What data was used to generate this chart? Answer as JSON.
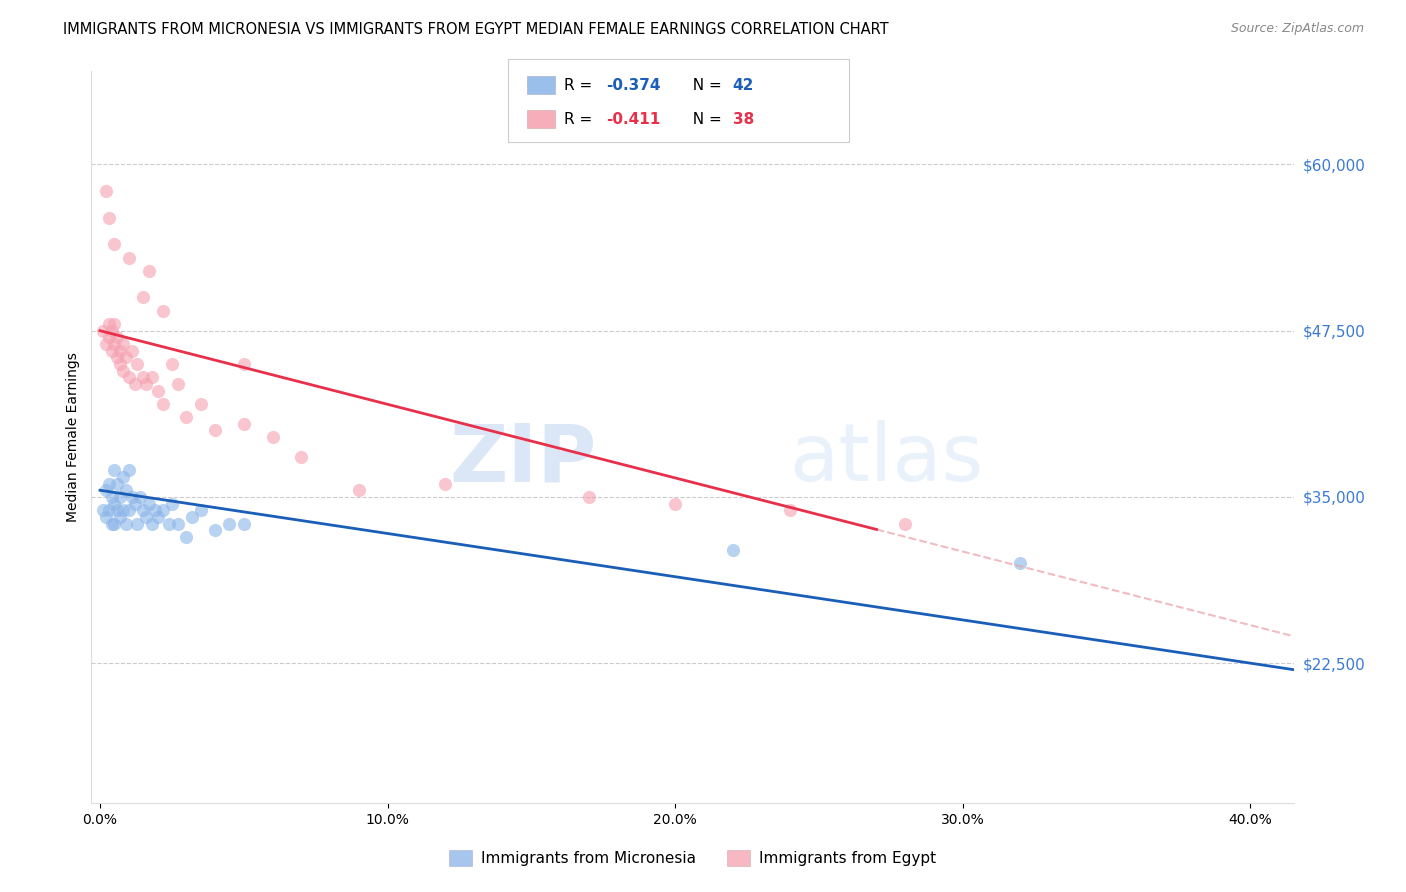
{
  "title": "IMMIGRANTS FROM MICRONESIA VS IMMIGRANTS FROM EGYPT MEDIAN FEMALE EARNINGS CORRELATION CHART",
  "source": "Source: ZipAtlas.com",
  "xlabel_ticks": [
    "0.0%",
    "10.0%",
    "20.0%",
    "30.0%",
    "40.0%"
  ],
  "xlabel_tick_vals": [
    0.0,
    0.1,
    0.2,
    0.3,
    0.4
  ],
  "ylabel": "Median Female Earnings",
  "ylabel_ticks": [
    22500,
    35000,
    47500,
    60000
  ],
  "ylabel_tick_labels": [
    "$22,500",
    "$35,000",
    "$47,500",
    "$60,000"
  ],
  "ylim": [
    12000,
    67000
  ],
  "xlim": [
    -0.003,
    0.415
  ],
  "blue_color": "#8ab4e8",
  "pink_color": "#f5a0b0",
  "blue_line_color": "#1a5eb8",
  "pink_line_color": "#e8304a",
  "watermark_zip": "ZIP",
  "watermark_atlas": "atlas",
  "legend_R_blue": "-0.374",
  "legend_N_blue": "42",
  "legend_R_pink": "-0.411",
  "legend_N_pink": "38",
  "micronesia_label": "Immigrants from Micronesia",
  "egypt_label": "Immigrants from Egypt",
  "mic_x": [
    0.001,
    0.002,
    0.002,
    0.003,
    0.003,
    0.004,
    0.004,
    0.005,
    0.005,
    0.005,
    0.006,
    0.006,
    0.007,
    0.007,
    0.008,
    0.008,
    0.009,
    0.009,
    0.01,
    0.01,
    0.011,
    0.012,
    0.013,
    0.014,
    0.015,
    0.016,
    0.017,
    0.018,
    0.019,
    0.02,
    0.022,
    0.024,
    0.025,
    0.027,
    0.03,
    0.032,
    0.035,
    0.04,
    0.045,
    0.05,
    0.22,
    0.32
  ],
  "mic_y": [
    34000,
    35500,
    33500,
    36000,
    34000,
    35000,
    33000,
    37000,
    34500,
    33000,
    36000,
    34000,
    35000,
    33500,
    36500,
    34000,
    35500,
    33000,
    37000,
    34000,
    35000,
    34500,
    33000,
    35000,
    34000,
    33500,
    34500,
    33000,
    34000,
    33500,
    34000,
    33000,
    34500,
    33000,
    32000,
    33500,
    34000,
    32500,
    33000,
    33000,
    31000,
    30000
  ],
  "egy_x": [
    0.001,
    0.002,
    0.003,
    0.003,
    0.004,
    0.004,
    0.005,
    0.005,
    0.006,
    0.006,
    0.007,
    0.007,
    0.008,
    0.008,
    0.009,
    0.01,
    0.011,
    0.012,
    0.013,
    0.015,
    0.016,
    0.018,
    0.02,
    0.022,
    0.025,
    0.027,
    0.03,
    0.035,
    0.04,
    0.05,
    0.06,
    0.07,
    0.09,
    0.12,
    0.17,
    0.2,
    0.24,
    0.28
  ],
  "egy_y": [
    47500,
    46500,
    48000,
    47000,
    47500,
    46000,
    48000,
    46500,
    47000,
    45500,
    46000,
    45000,
    46500,
    44500,
    45500,
    44000,
    46000,
    43500,
    45000,
    44000,
    43500,
    44000,
    43000,
    42000,
    45000,
    43500,
    41000,
    42000,
    40000,
    40500,
    39500,
    38000,
    35500,
    36000,
    35000,
    34500,
    34000,
    33000
  ],
  "egy_high_x": [
    0.002,
    0.003,
    0.005,
    0.01,
    0.015,
    0.017,
    0.022,
    0.05
  ],
  "egy_high_y": [
    58000,
    56000,
    54000,
    53000,
    50000,
    52000,
    49000,
    45000
  ],
  "title_fontsize": 10.5,
  "axis_label_fontsize": 10,
  "tick_fontsize": 10,
  "right_tick_color": "#3a7ad4",
  "background_color": "#FFFFFF"
}
